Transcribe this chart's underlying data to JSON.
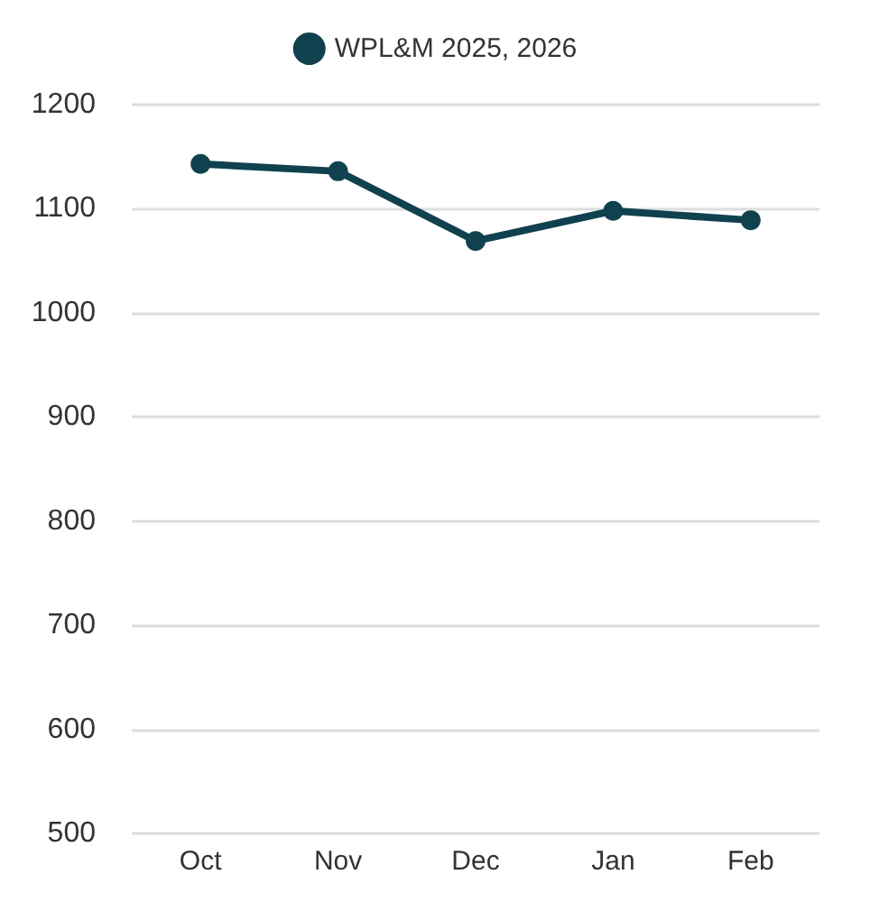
{
  "chart_data": {
    "type": "line",
    "categories": [
      "Oct",
      "Nov",
      "Dec",
      "Jan",
      "Feb"
    ],
    "series": [
      {
        "name": "WPL&M 2025, 2026",
        "color": "#10414f",
        "values": [
          1143,
          1136,
          1069,
          1098,
          1089
        ]
      }
    ],
    "ylim": [
      500,
      1200
    ],
    "yticks": [
      500,
      600,
      700,
      800,
      900,
      1000,
      1100,
      1200
    ],
    "grid": "y",
    "legend": "top",
    "marker": "circle",
    "line_style": "solid"
  }
}
